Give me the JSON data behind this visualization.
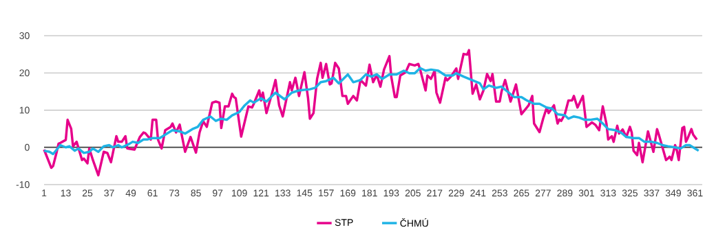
{
  "chart_data": {
    "type": "line",
    "xlim": [
      1,
      365
    ],
    "ylim": [
      -10,
      30
    ],
    "xticks": [
      1,
      13,
      25,
      37,
      49,
      61,
      73,
      85,
      97,
      109,
      121,
      133,
      145,
      157,
      169,
      181,
      193,
      205,
      217,
      229,
      241,
      253,
      265,
      277,
      289,
      301,
      313,
      325,
      337,
      349,
      361
    ],
    "yticks": [
      -10,
      0,
      10,
      20,
      30
    ],
    "grid": "y",
    "legend": "bottom",
    "marker": "none",
    "line_style": "solid",
    "ref_lines": [
      {
        "axis": "y",
        "value": 0,
        "color": "#404040"
      }
    ],
    "series": [
      {
        "name": "STP",
        "color": "#e6008a",
        "x": [
          1,
          5,
          6,
          8,
          9,
          10,
          13,
          14,
          16,
          17,
          19,
          22,
          23,
          25,
          26,
          28,
          31,
          34,
          36,
          38,
          41,
          42,
          44,
          46,
          47,
          51,
          54,
          56,
          57,
          60,
          61,
          63,
          64,
          66,
          68,
          71,
          72,
          74,
          76,
          79,
          82,
          85,
          87,
          89,
          91,
          94,
          96,
          98,
          99,
          101,
          103,
          105,
          106,
          107,
          110,
          114,
          116,
          117,
          120,
          121,
          122,
          124,
          127,
          129,
          131,
          133,
          137,
          138,
          140,
          142,
          145,
          147,
          148,
          150,
          152,
          154,
          155,
          157,
          159,
          160,
          162,
          164,
          166,
          168,
          169,
          172,
          174,
          176,
          179,
          181,
          183,
          185,
          187,
          189,
          192,
          193,
          195,
          196,
          198,
          201,
          203,
          206,
          208,
          209,
          212,
          213,
          215,
          217,
          218,
          220,
          223,
          224,
          226,
          229,
          230,
          233,
          235,
          236,
          238,
          240,
          242,
          244,
          246,
          248,
          249,
          251,
          253,
          254,
          256,
          259,
          260,
          262,
          265,
          269,
          271,
          272,
          275,
          277,
          279,
          280,
          283,
          285,
          286,
          287,
          289,
          291,
          293,
          294,
          296,
          299,
          301,
          304,
          306,
          308,
          310,
          312,
          313,
          315,
          316,
          318,
          319,
          321,
          323,
          325,
          326,
          327,
          329,
          330,
          332,
          335,
          338,
          340,
          341,
          345,
          346,
          347,
          348,
          350,
          351,
          352,
          354,
          355,
          356,
          357,
          359,
          360,
          362
        ],
        "values": [
          -0.6,
          -5.5,
          -5,
          -1.2,
          1,
          1.2,
          2,
          7.4,
          5,
          0.3,
          1.5,
          -3.4,
          -3,
          -4.3,
          -0.3,
          -3.4,
          -7.5,
          -1.2,
          -1.5,
          -4,
          3,
          1.5,
          1.5,
          3,
          -0.3,
          -0.6,
          2.8,
          4,
          3.8,
          2.1,
          7.4,
          7.4,
          2.1,
          -0.3,
          4.6,
          5.5,
          6.4,
          4,
          6.1,
          -1.2,
          2.8,
          -1.4,
          4,
          7,
          5.5,
          12,
          12.3,
          12,
          5.2,
          11,
          11,
          14.4,
          13.5,
          13.2,
          2.9,
          11,
          10.7,
          11.7,
          15.3,
          12.6,
          14.7,
          9.2,
          14.4,
          18.1,
          11.3,
          8.3,
          17.5,
          15.3,
          18.7,
          13.8,
          20.2,
          13.2,
          7.7,
          9.2,
          18.4,
          22.7,
          18.7,
          22.4,
          16.9,
          17.2,
          22.7,
          21.2,
          13.8,
          13.8,
          11.7,
          13.8,
          12.6,
          18.1,
          16.6,
          22.2,
          17.5,
          19.5,
          16.3,
          20.9,
          24.5,
          19,
          13.5,
          13.5,
          19.3,
          20.2,
          22.4,
          22,
          22.4,
          20.9,
          15.3,
          19.3,
          18.4,
          20.6,
          14.7,
          12,
          18.7,
          18,
          19,
          21.2,
          18.4,
          25.1,
          24.9,
          26.1,
          14.4,
          16.9,
          12.9,
          15.3,
          19.7,
          17.8,
          19.7,
          12.3,
          12.3,
          15,
          18.1,
          12.3,
          13.8,
          16.9,
          8.9,
          11.3,
          13.8,
          6.4,
          4.1,
          7.7,
          10.7,
          9.2,
          11.3,
          6.4,
          7.5,
          7.1,
          8.9,
          12.6,
          12.6,
          13.8,
          10.7,
          13.8,
          5.5,
          6.7,
          6,
          4.6,
          11,
          6.4,
          2.1,
          3,
          1.5,
          5.8,
          3.7,
          4.8,
          2.8,
          5.5,
          4,
          -0.9,
          -2.1,
          1.2,
          -4,
          4.3,
          -1.2,
          4.9,
          3.4,
          -3.4,
          -3,
          -2.5,
          -3.4,
          0.6,
          -0.9,
          -3.4,
          5.2,
          5.5,
          1.5,
          2.5,
          4.9,
          3.4,
          2.1
        ]
      },
      {
        "name": "ČHMÚ",
        "color": "#1fb3e5",
        "x": [
          1,
          4,
          6,
          10,
          13,
          15,
          18,
          20,
          23,
          26,
          28,
          31,
          34,
          37,
          39,
          42,
          44,
          48,
          50,
          53,
          56,
          58,
          61,
          65,
          68,
          72,
          76,
          79,
          83,
          86,
          89,
          93,
          96,
          99,
          102,
          105,
          109,
          112,
          115,
          117,
          121,
          124,
          129,
          134,
          138,
          142,
          148,
          151,
          154,
          157,
          161,
          164,
          169,
          172,
          176,
          179,
          182,
          185,
          188,
          192,
          196,
          200,
          203,
          206,
          209,
          212,
          215,
          219,
          223,
          227,
          229,
          233,
          236,
          239,
          242,
          244,
          247,
          251,
          254,
          258,
          261,
          265,
          268,
          272,
          275,
          279,
          282,
          285,
          289,
          291,
          294,
          297,
          300,
          303,
          307,
          310,
          313,
          317,
          320,
          323,
          327,
          330,
          333,
          337,
          340,
          343,
          346,
          350,
          353,
          356,
          358,
          362,
          363
        ],
        "values": [
          -0.9,
          -1.2,
          -1.8,
          0.6,
          0,
          0.3,
          -0.9,
          -0.3,
          -1.5,
          -1.2,
          -0.3,
          -1.2,
          0.3,
          0.6,
          0,
          0.6,
          0,
          0.9,
          1.5,
          1.2,
          2.1,
          2.1,
          2.5,
          2.5,
          3.4,
          4.6,
          4.3,
          3.7,
          4.9,
          5.5,
          7.4,
          8.3,
          7.1,
          7.7,
          7.4,
          8.6,
          9.5,
          11.3,
          12.6,
          12,
          13.2,
          12.3,
          14.7,
          12.9,
          14.7,
          15.3,
          15.6,
          16,
          17.5,
          17.8,
          18.7,
          17.2,
          19.6,
          17.5,
          18.1,
          19.6,
          19,
          19.6,
          18.4,
          19.6,
          19.6,
          20.6,
          19.9,
          19.9,
          21.3,
          20.6,
          20.9,
          20.6,
          19.3,
          19.3,
          19.9,
          19,
          18.4,
          17.8,
          17.2,
          15.6,
          16.6,
          16,
          16.3,
          14.7,
          13.5,
          13.5,
          12.6,
          11.7,
          11.7,
          10.7,
          10.4,
          8.9,
          8.6,
          7.7,
          8.3,
          8,
          7.4,
          7.4,
          7.7,
          6.4,
          4.9,
          4.6,
          4,
          2.8,
          2.5,
          2.5,
          1.5,
          1.5,
          1.2,
          0.6,
          0.3,
          0,
          -0.3,
          0.6,
          0.6,
          -0.6,
          -0.9
        ]
      }
    ]
  }
}
